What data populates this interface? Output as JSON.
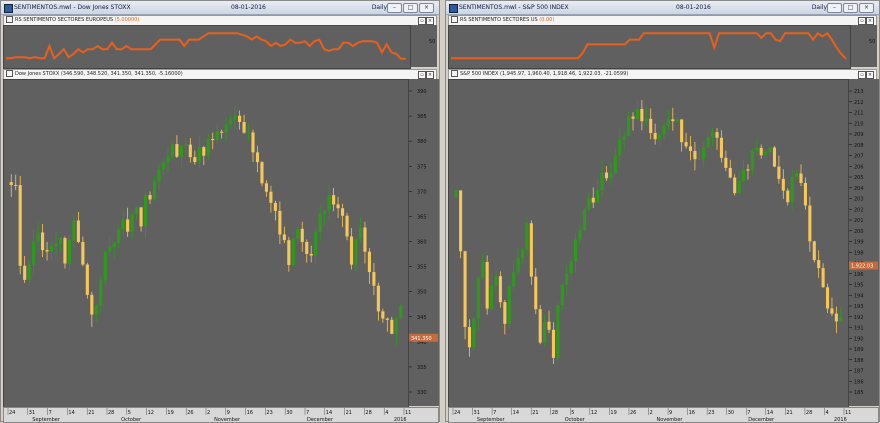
{
  "colors": {
    "up": "#2e9a1c",
    "down": "#f7c65a",
    "bg": "#606060",
    "indicator": "#e8601c"
  },
  "windows": [
    {
      "title": "SENTIMENTOS.mwl - Dow Jones STOXX",
      "date": "08-01-2016",
      "period": "Daily",
      "indicator_header": {
        "name": "RS SENTIMENTO SECTORES EUROPEUS",
        "value": "(5.00000)"
      },
      "indicator_axis_label": "50",
      "price_header": "Dow Jones STOXX (346.590, 348.520, 341.350, 341.350, -5.16000)",
      "last_price_tag": "341.350",
      "yticks": [
        "390",
        "385",
        "380",
        "375",
        "370",
        "365",
        "360",
        "355",
        "350",
        "345",
        "340",
        "335",
        "330"
      ],
      "xdays": [
        "24",
        "31",
        "7",
        "14",
        "21",
        "28",
        "5",
        "12",
        "19",
        "26",
        "2",
        "9",
        "16",
        "23",
        "30",
        "7",
        "14",
        "21",
        "28",
        "4",
        "11"
      ],
      "months": [
        "September",
        "October",
        "November",
        "December",
        "2016"
      ]
    },
    {
      "title": "SENTIMENTOS.mwl - S&P 500 INDEX",
      "date": "08-01-2016",
      "period": "Daily",
      "indicator_header": {
        "name": "RS SENTIMENTO SECTORES US",
        "value": "(0.00)"
      },
      "indicator_axis_label": "50",
      "price_header": "S&P 500 INDEX (1,945.97, 1,960.40, 1,918.46, 1,922.03, -21.0599)",
      "last_price_tag": "1,922.03",
      "yticks": [
        "213",
        "212",
        "211",
        "210",
        "209",
        "208",
        "207",
        "206",
        "205",
        "204",
        "203",
        "202",
        "201",
        "200",
        "199",
        "198",
        "197",
        "196",
        "195",
        "194",
        "193",
        "192",
        "191",
        "190",
        "189",
        "188",
        "187",
        "186",
        "185"
      ],
      "xdays": [
        "24",
        "31",
        "7",
        "14",
        "21",
        "28",
        "5",
        "12",
        "19",
        "26",
        "2",
        "9",
        "16",
        "23",
        "30",
        "7",
        "14",
        "21",
        "28",
        "4",
        "11"
      ],
      "months": [
        "September",
        "October",
        "November",
        "December",
        "2016"
      ]
    }
  ]
}
